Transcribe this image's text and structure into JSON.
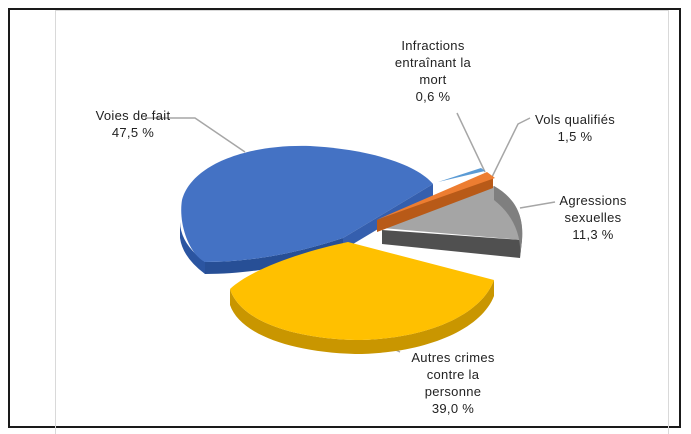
{
  "chart_data": {
    "type": "pie",
    "title": "",
    "slices": [
      {
        "label_line1": "Voies de fait",
        "label_line2": "",
        "label_line3": "",
        "value_text": "47,5 %",
        "value": 47.5,
        "color": "#4472c4"
      },
      {
        "label_line1": "Autres crimes",
        "label_line2": "contre la",
        "label_line3": "personne",
        "value_text": "39,0 %",
        "value": 39.0,
        "color": "#ffc000"
      },
      {
        "label_line1": "Agressions",
        "label_line2": "sexuelles",
        "label_line3": "",
        "value_text": "11,3 %",
        "value": 11.3,
        "color": "#a5a5a5"
      },
      {
        "label_line1": "Vols qualifiés",
        "label_line2": "",
        "label_line3": "",
        "value_text": "1,5 %",
        "value": 1.5,
        "color": "#ed7d31"
      },
      {
        "label_line1": "Infractions",
        "label_line2": "entraînant la",
        "label_line3": "mort",
        "value_text": "0,6 %",
        "value": 0.6,
        "color": "#5b9bd5"
      }
    ],
    "legend": "none",
    "style": "3d-exploded"
  }
}
